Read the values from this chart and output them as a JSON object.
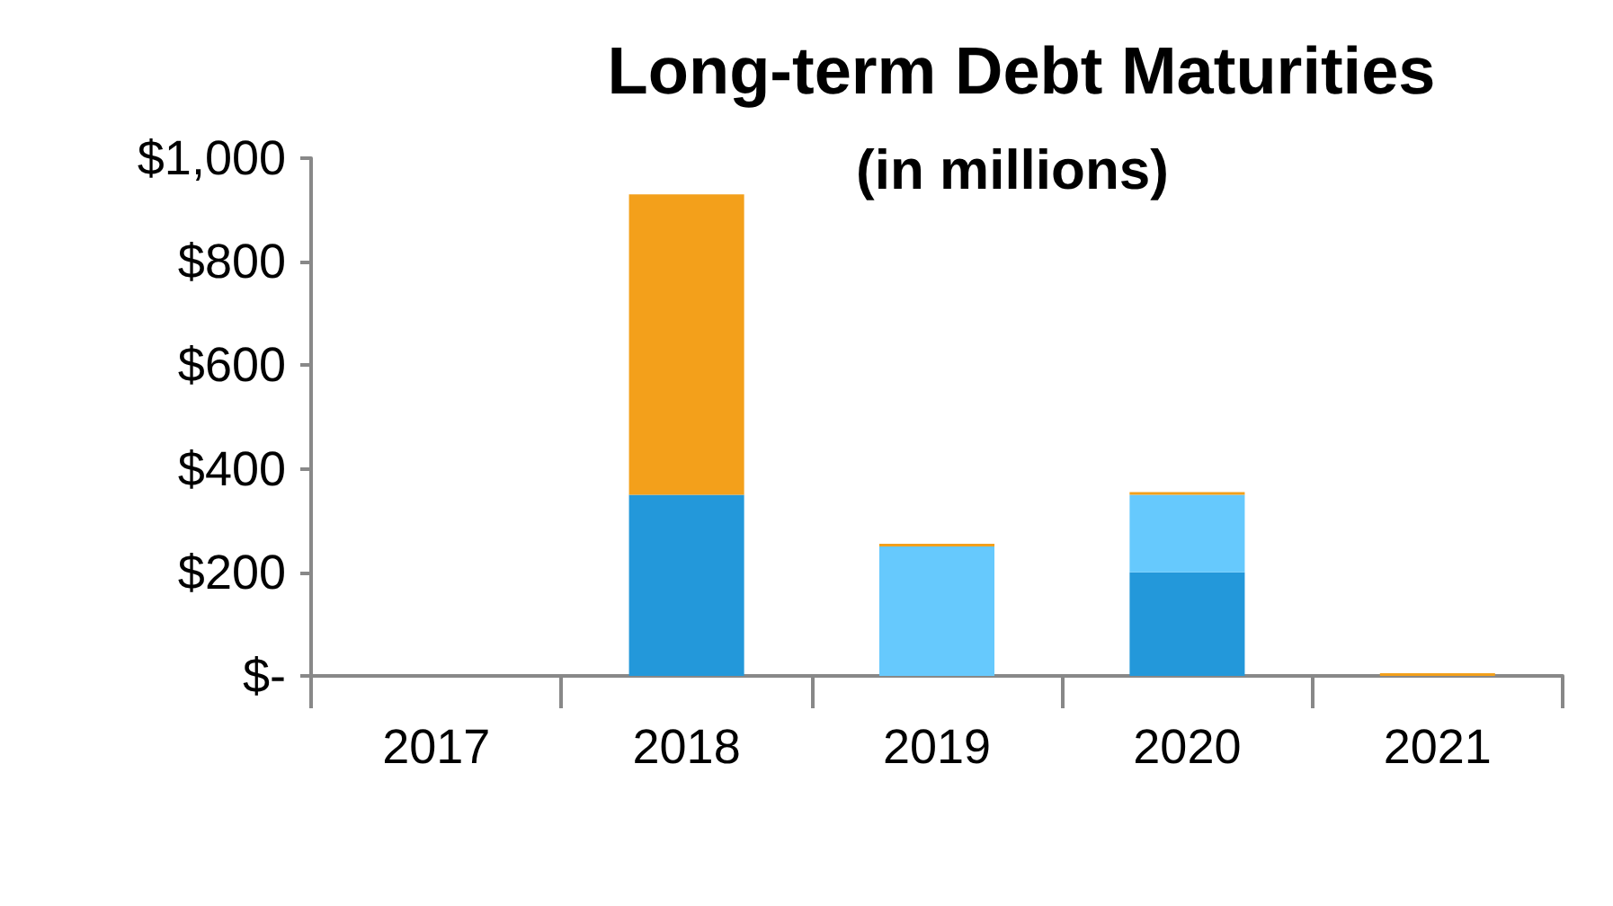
{
  "chart_data": {
    "type": "bar",
    "title": "Long-term Debt Maturities",
    "subtitle": "(in millions)",
    "stacked": true,
    "categories": [
      "2017",
      "2018",
      "2019",
      "2020",
      "2021"
    ],
    "series": [
      {
        "color": "#2398da",
        "values": [
          0,
          350,
          0,
          200,
          0
        ]
      },
      {
        "color": "#66c9fd",
        "values": [
          0,
          0,
          250,
          150,
          0
        ]
      },
      {
        "color": "#f3a01b",
        "values": [
          0,
          580,
          5,
          5,
          5
        ]
      }
    ],
    "ylim": [
      0,
      1000
    ],
    "yticks": [
      {
        "value": 0,
        "label": "$-"
      },
      {
        "value": 200,
        "label": "$200"
      },
      {
        "value": 400,
        "label": "$400"
      },
      {
        "value": 600,
        "label": "$600"
      },
      {
        "value": 800,
        "label": "$800"
      },
      {
        "value": 1000,
        "label": "$1,000"
      }
    ],
    "grid": false
  }
}
